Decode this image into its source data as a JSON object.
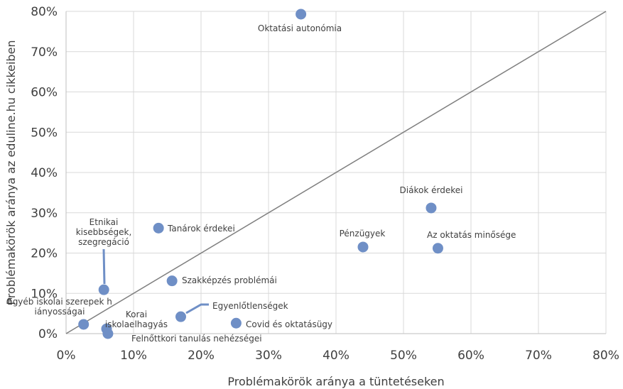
{
  "chart_data": {
    "type": "scatter",
    "title": "",
    "xlabel": "Problémakörök aránya a tüntetéseken",
    "ylabel": "Problémakörök aránya az eduline.hu cikkeiben",
    "xlim": [
      0,
      0.8
    ],
    "ylim": [
      0,
      0.8
    ],
    "x_ticks": [
      "0%",
      "10%",
      "20%",
      "30%",
      "40%",
      "50%",
      "60%",
      "70%",
      "80%"
    ],
    "y_ticks": [
      "0%",
      "10%",
      "20%",
      "30%",
      "40%",
      "50%",
      "60%",
      "70%",
      "80%"
    ],
    "grid": "vertical and horizontal major gridlines",
    "reference_line": "y = x diagonal",
    "marker_color": "#6f8fc6",
    "line_color": "#7f7f7f",
    "points": [
      {
        "label": "Oktatási autonómia",
        "x": 0.348,
        "y": 0.793
      },
      {
        "label": "Diákok érdekei",
        "x": 0.541,
        "y": 0.312
      },
      {
        "label": "Tanárok érdekei",
        "x": 0.137,
        "y": 0.262
      },
      {
        "label": "Pénzügyek",
        "x": 0.44,
        "y": 0.215
      },
      {
        "label": "Az oktatás minősége",
        "x": 0.551,
        "y": 0.212
      },
      {
        "label": "Szakképzés problémái",
        "x": 0.157,
        "y": 0.131
      },
      {
        "label": "Etnikai kisebbségek, szegregáció",
        "x": 0.056,
        "y": 0.109
      },
      {
        "label": "Egyenlőtlenségek",
        "x": 0.17,
        "y": 0.042
      },
      {
        "label": "Covid és oktatásügy",
        "x": 0.252,
        "y": 0.026
      },
      {
        "label": "Egyéb iskolai szerepek hiányosságai",
        "x": 0.026,
        "y": 0.023
      },
      {
        "label": "Korai iskolaelhagyás",
        "x": 0.06,
        "y": 0.012
      },
      {
        "label": "Felnőttkori tanulás nehézségei",
        "x": 0.062,
        "y": 0.0
      }
    ]
  }
}
